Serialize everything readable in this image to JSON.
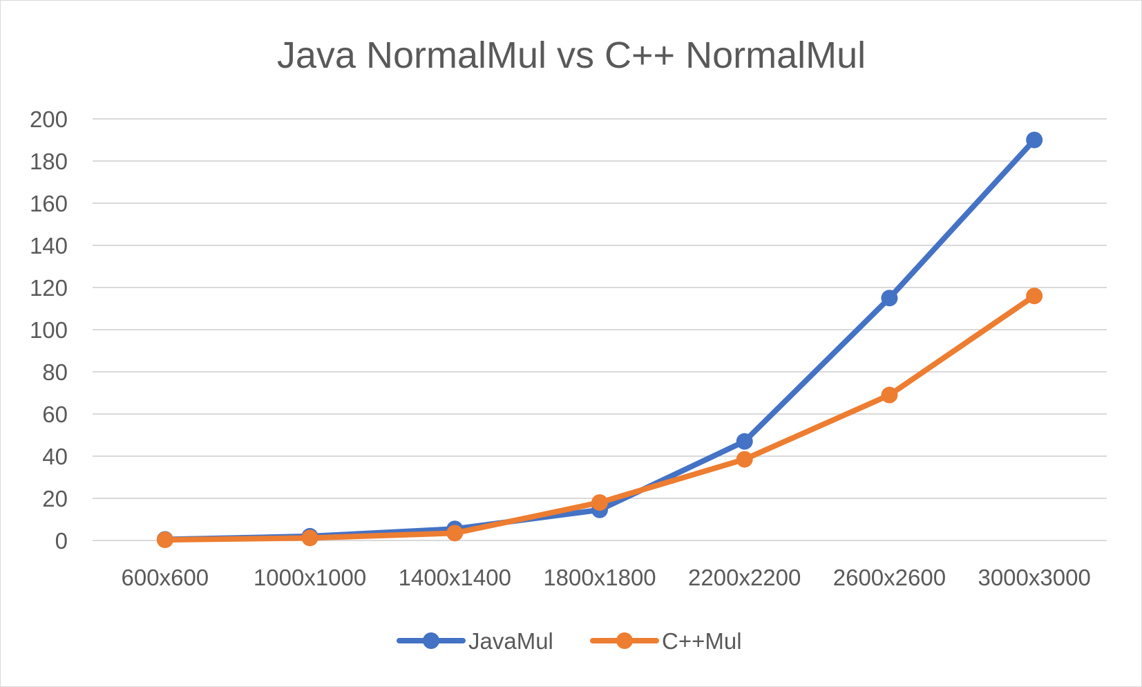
{
  "chart_data": {
    "type": "line",
    "title": "Java NormalMul vs C++ NormalMul",
    "xlabel": "",
    "ylabel": "",
    "categories": [
      "600x600",
      "1000x1000",
      "1400x1400",
      "1800x1800",
      "2200x2200",
      "2600x2600",
      "3000x3000"
    ],
    "ylim": [
      0,
      200
    ],
    "yticks": [
      0,
      20,
      40,
      60,
      80,
      100,
      120,
      140,
      160,
      180,
      200
    ],
    "grid": true,
    "legend_position": "bottom",
    "series": [
      {
        "name": "JavaMul",
        "color": "#4472c4",
        "values": [
          0.5,
          2,
          5.5,
          14.5,
          47,
          115,
          190
        ]
      },
      {
        "name": "C++Mul",
        "color": "#ed7d31",
        "values": [
          0.3,
          1.2,
          3.5,
          18,
          38.5,
          69,
          116
        ]
      }
    ]
  }
}
